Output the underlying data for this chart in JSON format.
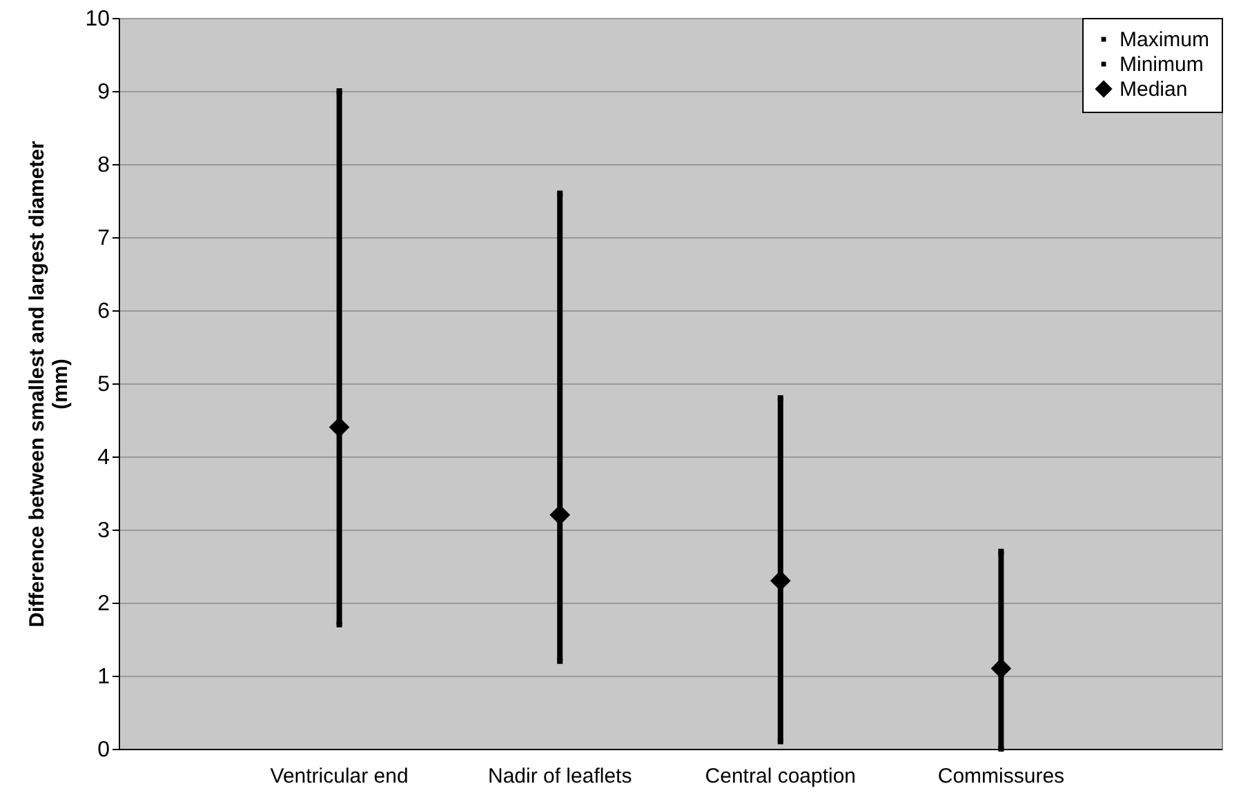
{
  "chart_data": {
    "type": "scatter",
    "ylabel": "Difference between smallest and largest diameter (mm)",
    "categories": [
      "Ventricular end",
      "Nadir of leaflets",
      "Central coaption",
      "Commissures"
    ],
    "series": [
      {
        "name": "Maximum",
        "color": "#000000",
        "marker": "square",
        "values": [
          9.0,
          7.6,
          4.8,
          2.7
        ]
      },
      {
        "name": "Minimum",
        "color": "#000000",
        "marker": "square",
        "values": [
          1.7,
          1.2,
          0.1,
          0.0
        ]
      },
      {
        "name": "Median",
        "color": "#000000",
        "marker": "diamond",
        "values": [
          4.4,
          3.2,
          2.3,
          1.1
        ]
      }
    ],
    "ylim": [
      0,
      10
    ],
    "yticks": [
      0,
      1,
      2,
      3,
      4,
      5,
      6,
      7,
      8,
      9,
      10
    ],
    "grid": "y",
    "legend": "top right"
  }
}
